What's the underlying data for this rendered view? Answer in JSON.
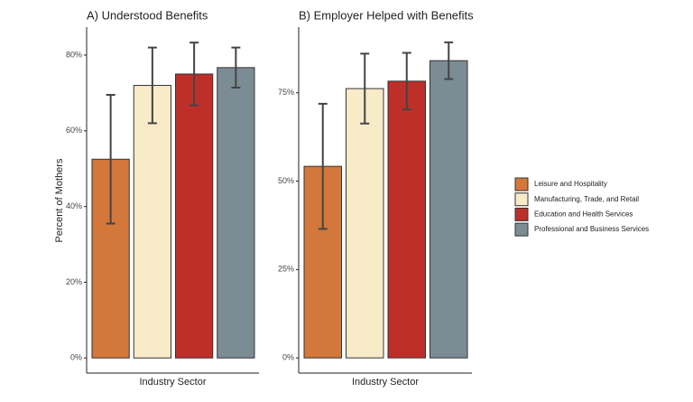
{
  "chart_data": [
    {
      "type": "bar",
      "title": "A) Understood Benefits",
      "x_label": "Industry Sector",
      "y_label": "Percent of Mothers",
      "categories": [
        "Leisure and Hospitality",
        "Manufacturing, Trade, and Retail",
        "Education and Health Services",
        "Professional and Business Services"
      ],
      "values": [
        52.5,
        72,
        75,
        76.7
      ],
      "errors": [
        17,
        10,
        8.3,
        5.3
      ],
      "colors": [
        "#d4773a",
        "#f7ebc8",
        "#bf2f29",
        "#7b8c94"
      ],
      "ylim": [
        -4,
        87.4
      ],
      "yticks": [
        {
          "value": 0,
          "label": "0%"
        },
        {
          "value": 20,
          "label": "20%"
        },
        {
          "value": 40,
          "label": "40%"
        },
        {
          "value": 60,
          "label": "60%"
        },
        {
          "value": 80,
          "label": "80%"
        }
      ]
    },
    {
      "type": "bar",
      "title": "B) Employer Helped with Benefits",
      "x_label": "Industry Sector",
      "categories": [
        "Leisure and Hospitality",
        "Manufacturing, Trade, and Retail",
        "Education and Health Services",
        "Professional and Business Services"
      ],
      "values": [
        54.2,
        76.2,
        78.3,
        84.1
      ],
      "errors": [
        17.7,
        9.9,
        8,
        5.2
      ],
      "colors": [
        "#d4773a",
        "#f7ebc8",
        "#bf2f29",
        "#7b8c94"
      ],
      "ylim": [
        -4.3,
        93.6
      ],
      "yticks": [
        {
          "value": 0,
          "label": "0%"
        },
        {
          "value": 25,
          "label": "25%"
        },
        {
          "value": 50,
          "label": "50%"
        },
        {
          "value": 75,
          "label": "75%"
        }
      ]
    }
  ]
}
